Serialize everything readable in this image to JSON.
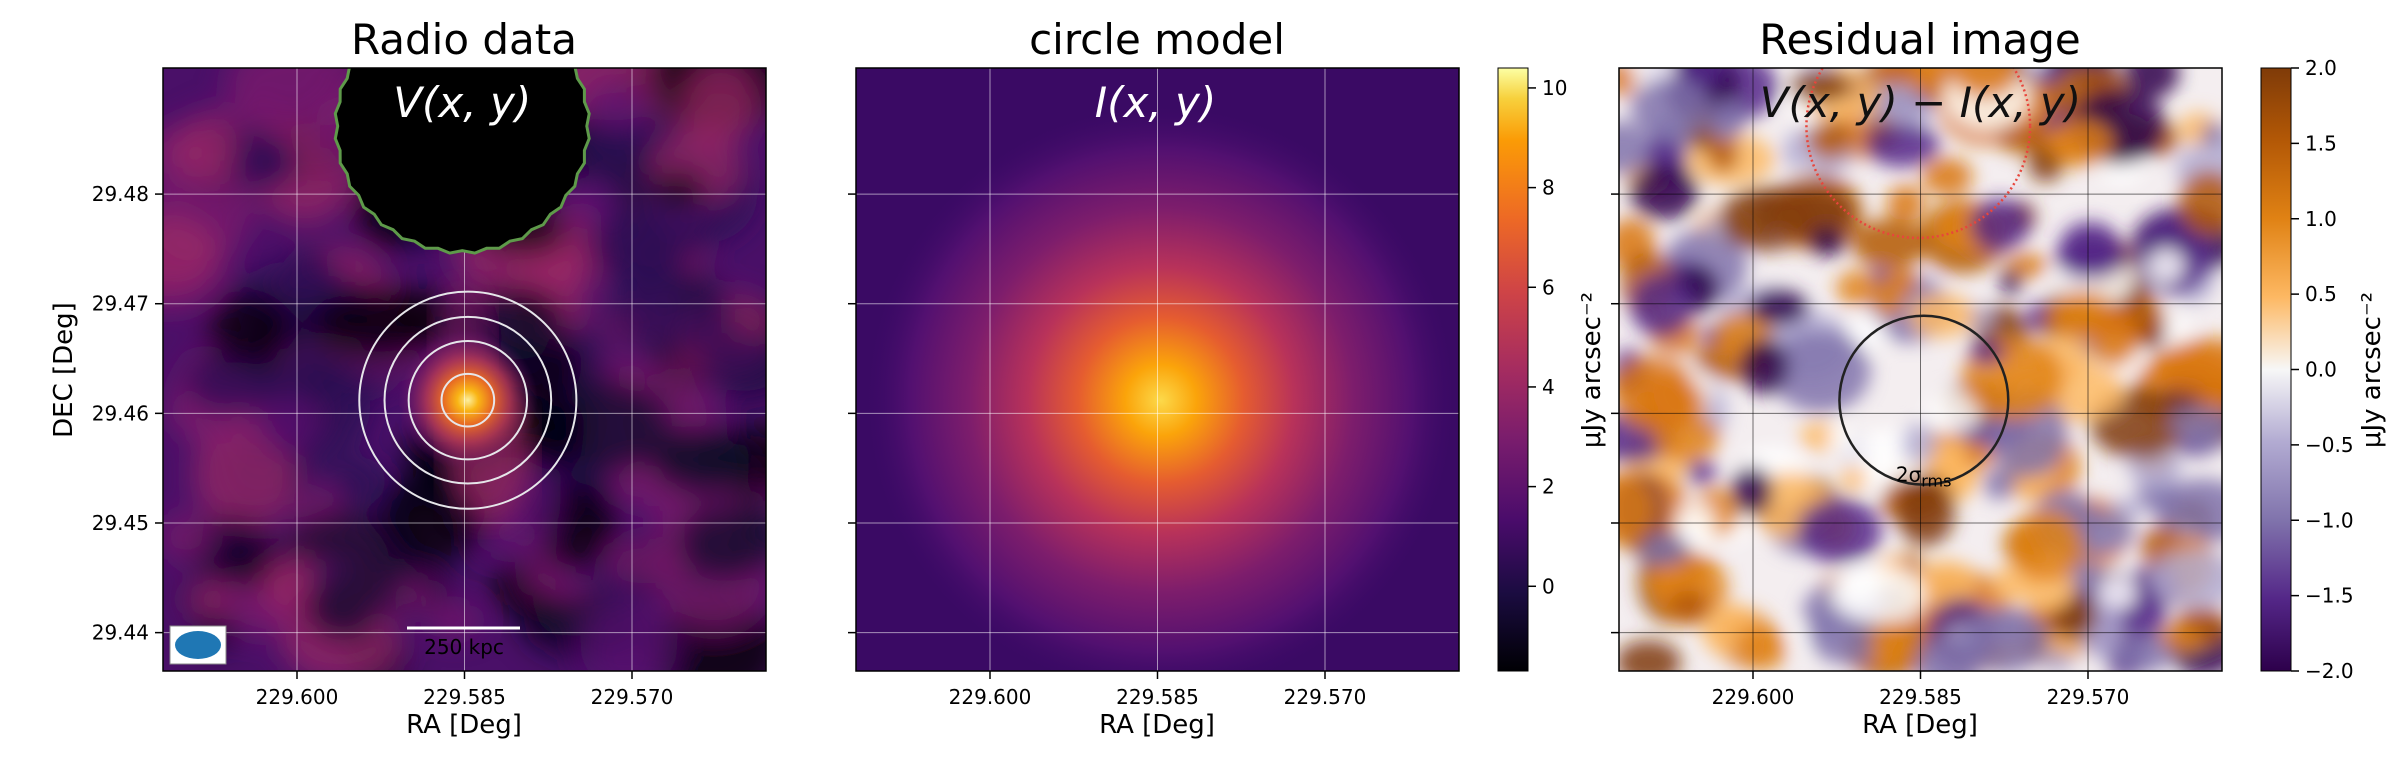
{
  "chart_data": [
    {
      "type": "heatmap",
      "title": "Radio data",
      "inner_label": "V(x, y)",
      "xlabel": "RA [Deg]",
      "ylabel": "DEC [Deg]",
      "xlim": [
        229.612,
        229.558
      ],
      "ylim": [
        29.4365,
        29.4915
      ],
      "x_ticks": [
        229.6,
        229.585,
        229.57
      ],
      "x_tick_labels": [
        "229.600",
        "229.585",
        "229.570"
      ],
      "y_ticks": [
        29.44,
        29.45,
        29.46,
        29.47,
        29.48
      ],
      "y_tick_labels": [
        "29.44",
        "29.45",
        "29.46",
        "29.47",
        "29.48"
      ],
      "grid": true,
      "colormap": "inferno",
      "source_center": [
        229.5847,
        29.4612
      ],
      "contour_radii_deg": [
        0.0024,
        0.0054,
        0.0076,
        0.0099
      ],
      "contour_color": "#e6e6ea",
      "masked_region_center": [
        229.5852,
        29.4862
      ],
      "masked_region_radius_deg": 0.0115,
      "mask_outline_color": "#5e9a4a",
      "scalebar_label": "250 kpc",
      "beam_color": "#1f77b4"
    },
    {
      "type": "heatmap",
      "title": "circle model",
      "inner_label": "I(x, y)",
      "xlabel": "RA [Deg]",
      "xlim": [
        229.612,
        229.558
      ],
      "ylim": [
        29.4365,
        29.4915
      ],
      "x_ticks": [
        229.6,
        229.585,
        229.57
      ],
      "x_tick_labels": [
        "229.600",
        "229.585",
        "229.570"
      ],
      "grid": true,
      "colormap": "inferno",
      "model_center": [
        229.5847,
        29.4612
      ],
      "model_peak": 10.2,
      "model_radius_deg": 0.0045,
      "model_background": 1.5,
      "colorbar": {
        "label": "μJy arcsec⁻²",
        "range": [
          -1.7,
          10.4
        ],
        "ticks": [
          0,
          2,
          4,
          6,
          8,
          10
        ],
        "tick_labels": [
          "0",
          "2",
          "4",
          "6",
          "8",
          "10"
        ]
      }
    },
    {
      "type": "heatmap",
      "title": "Residual image",
      "inner_label": "V(x, y) − I(x, y)",
      "xlabel": "RA [Deg]",
      "xlim": [
        229.612,
        229.558
      ],
      "ylim": [
        29.4365,
        29.4915
      ],
      "x_ticks": [
        229.6,
        229.585,
        229.57
      ],
      "x_tick_labels": [
        "229.600",
        "229.585",
        "229.570"
      ],
      "grid": true,
      "colormap": "PuOr",
      "mask_circle_center": [
        229.5852,
        29.4862
      ],
      "mask_circle_radius_deg": 0.0102,
      "mask_circle_color": "#e8453c",
      "sigma_contour_center": [
        229.5847,
        29.4612
      ],
      "sigma_contour_radius_deg": 0.0077,
      "sigma_label_main": "2σ",
      "sigma_label_sub": "rms",
      "colorbar": {
        "label": "μJy arcsec⁻²",
        "range": [
          -2.0,
          2.0
        ],
        "ticks": [
          -2.0,
          -1.5,
          -1.0,
          -0.5,
          0.0,
          0.5,
          1.0,
          1.5,
          2.0
        ],
        "tick_labels": [
          "−2.0",
          "−1.5",
          "−1.0",
          "−0.5",
          "0.0",
          "0.5",
          "1.0",
          "1.5",
          "2.0"
        ]
      }
    }
  ]
}
